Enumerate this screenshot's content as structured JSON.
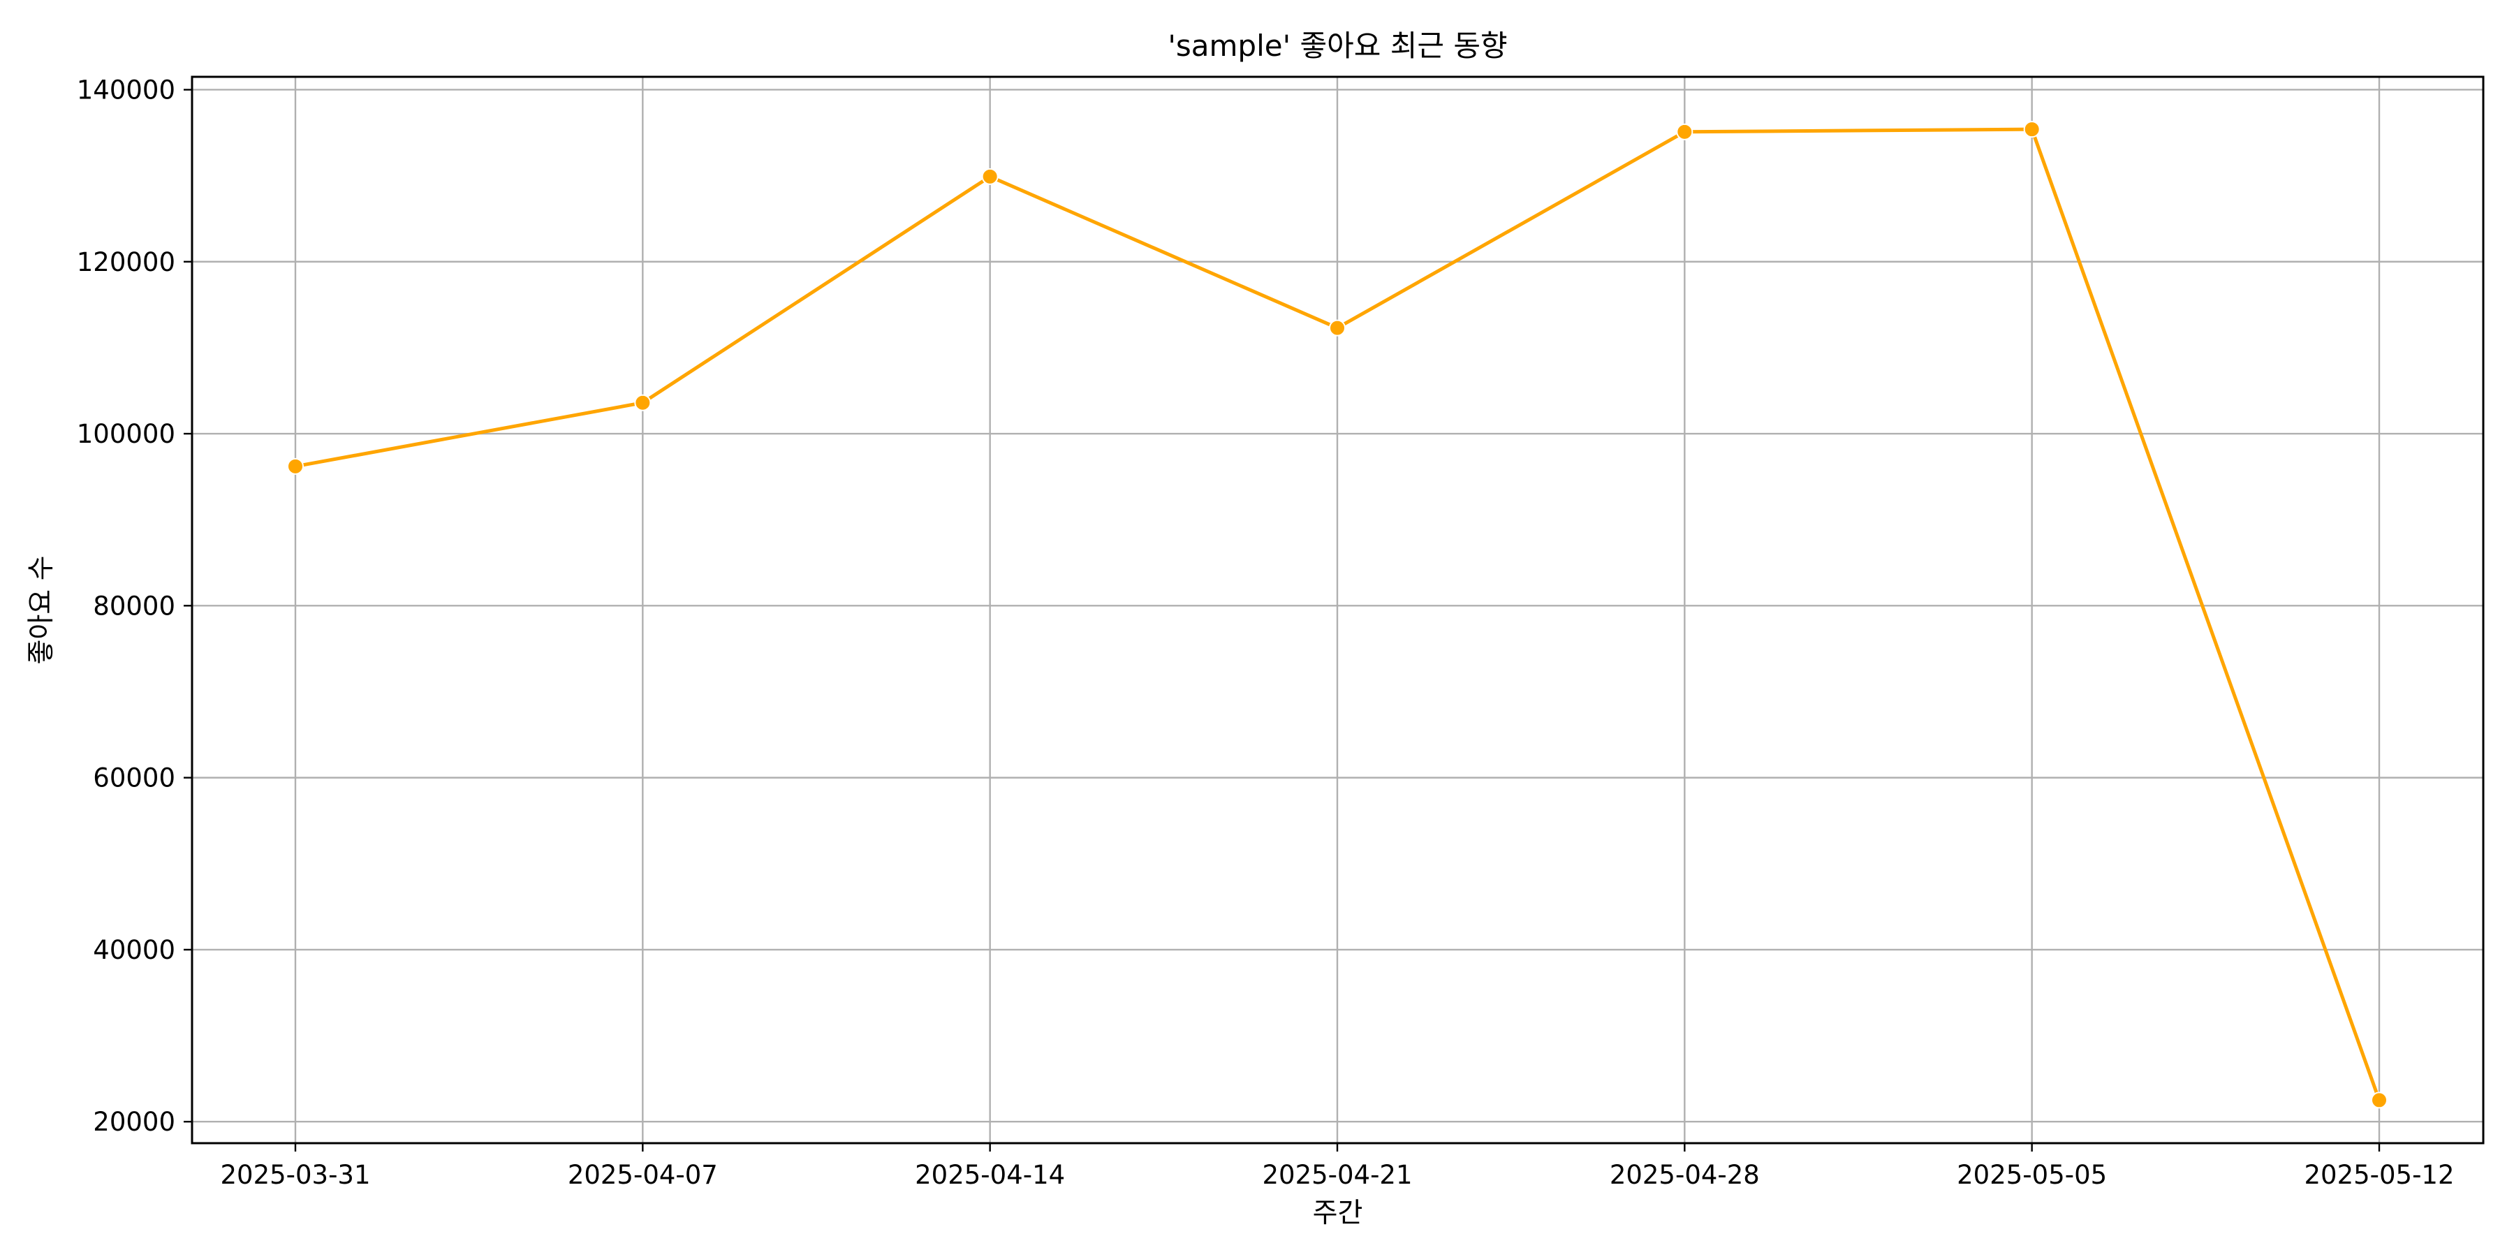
{
  "chart_data": {
    "type": "line",
    "title": "'sample' 좋아요 최근 동향",
    "xlabel": "주간",
    "ylabel": "좋아요 수",
    "x": [
      "2025-03-31",
      "2025-04-07",
      "2025-04-14",
      "2025-04-21",
      "2025-04-28",
      "2025-05-05",
      "2025-05-12"
    ],
    "series": [
      {
        "values": [
          96200,
          103600,
          129900,
          112300,
          135100,
          135400,
          22500
        ],
        "color": "#FFA500"
      }
    ],
    "ylim": [
      17500,
      141500
    ],
    "yticks": [
      20000,
      40000,
      60000,
      80000,
      100000,
      120000,
      140000
    ],
    "grid": true,
    "marker": "circle",
    "grid_color": "#b0b0b0",
    "axes_color": "#000000"
  }
}
